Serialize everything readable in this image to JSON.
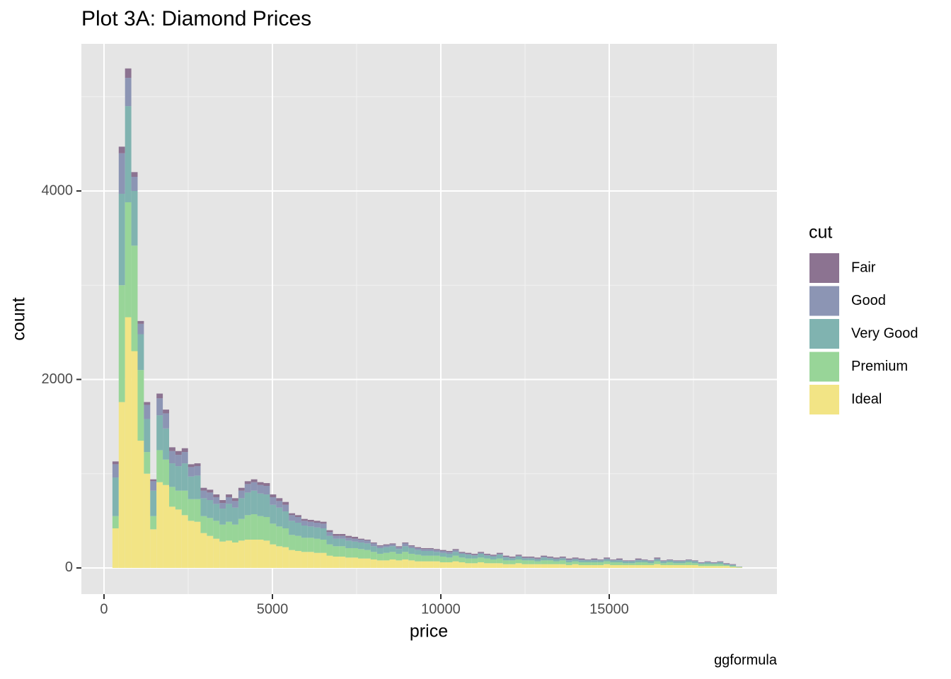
{
  "chart_data": {
    "type": "histogram",
    "title": "Plot 3A: Diamond Prices",
    "x_label": "price",
    "y_label": "count",
    "caption": "ggformula",
    "legend_title": "cut",
    "legend_position": "right",
    "grid": true,
    "xlim": [
      -672,
      19979
    ],
    "ylim": [
      -278,
      5561
    ],
    "xticks": [
      0,
      5000,
      10000,
      15000
    ],
    "yticks": [
      0,
      2000,
      4000
    ],
    "bins": [
      250,
      437,
      624,
      811,
      998,
      1185,
      1372,
      1559,
      1746,
      1933,
      2120,
      2307,
      2494,
      2681,
      2868,
      3055,
      3242,
      3429,
      3616,
      3803,
      3990,
      4177,
      4364,
      4551,
      4738,
      4925,
      5112,
      5299,
      5486,
      5673,
      5860,
      6047,
      6234,
      6421,
      6608,
      6795,
      6982,
      7169,
      7356,
      7543,
      7730,
      7917,
      8104,
      8291,
      8478,
      8665,
      8852,
      9039,
      9226,
      9413,
      9600,
      9787,
      9974,
      10161,
      10348,
      10535,
      10722,
      10909,
      11096,
      11283,
      11470,
      11657,
      11844,
      12031,
      12218,
      12405,
      12592,
      12779,
      12966,
      13153,
      13340,
      13527,
      13714,
      13901,
      14088,
      14275,
      14462,
      14649,
      14836,
      15023,
      15210,
      15397,
      15584,
      15771,
      15958,
      16145,
      16332,
      16519,
      16706,
      16893,
      17080,
      17267,
      17454,
      17641,
      17828,
      18015,
      18202,
      18389,
      18576,
      18763,
      18950
    ],
    "series": [
      {
        "name": "Fair",
        "color": "#8c7391",
        "values": [
          30,
          70,
          100,
          50,
          30,
          30,
          20,
          50,
          40,
          40,
          40,
          40,
          30,
          30,
          30,
          30,
          30,
          30,
          30,
          30,
          30,
          30,
          30,
          30,
          30,
          30,
          30,
          30,
          20,
          20,
          20,
          20,
          20,
          20,
          20,
          20,
          20,
          20,
          20,
          10,
          10,
          10,
          10,
          10,
          10,
          10,
          10,
          10,
          10,
          10,
          10,
          10,
          10,
          10,
          10,
          10,
          10,
          10,
          10,
          10,
          10,
          10,
          10,
          10,
          10,
          10,
          10,
          10,
          10,
          10,
          10,
          10,
          10,
          10,
          10,
          5,
          10,
          5,
          10,
          5,
          10,
          5,
          5,
          10,
          5,
          5,
          10,
          5,
          5,
          5,
          5,
          5,
          5,
          5,
          5,
          5,
          5,
          5,
          5,
          1
        ]
      },
      {
        "name": "Good",
        "color": "#8c95b4",
        "values": [
          140,
          430,
          300,
          150,
          110,
          150,
          100,
          180,
          160,
          130,
          120,
          120,
          100,
          100,
          80,
          80,
          70,
          60,
          70,
          70,
          80,
          90,
          90,
          90,
          90,
          80,
          70,
          70,
          60,
          60,
          50,
          50,
          50,
          50,
          40,
          30,
          30,
          30,
          30,
          30,
          30,
          30,
          20,
          20,
          20,
          20,
          30,
          20,
          20,
          20,
          20,
          20,
          20,
          20,
          20,
          10,
          10,
          10,
          10,
          10,
          10,
          10,
          10,
          10,
          10,
          10,
          10,
          10,
          10,
          10,
          10,
          10,
          10,
          10,
          10,
          5,
          10,
          5,
          10,
          5,
          10,
          5,
          5,
          10,
          5,
          5,
          10,
          5,
          5,
          5,
          5,
          5,
          5,
          5,
          5,
          5,
          5,
          5,
          5,
          1
        ]
      },
      {
        "name": "Very Good",
        "color": "#80b3b0",
        "values": [
          410,
          970,
          1020,
          580,
          380,
          350,
          270,
          370,
          330,
          250,
          260,
          290,
          240,
          250,
          190,
          190,
          180,
          170,
          190,
          180,
          220,
          240,
          250,
          240,
          240,
          200,
          200,
          180,
          150,
          140,
          130,
          120,
          120,
          120,
          90,
          80,
          80,
          80,
          70,
          70,
          70,
          60,
          60,
          60,
          60,
          50,
          60,
          60,
          50,
          50,
          50,
          40,
          40,
          40,
          40,
          40,
          40,
          30,
          40,
          30,
          30,
          40,
          30,
          20,
          30,
          20,
          20,
          20,
          30,
          20,
          20,
          20,
          20,
          20,
          20,
          20,
          20,
          20,
          20,
          20,
          20,
          20,
          20,
          20,
          20,
          20,
          20,
          20,
          20,
          20,
          20,
          20,
          20,
          10,
          20,
          10,
          20,
          10,
          10,
          3
        ]
      },
      {
        "name": "Premium",
        "color": "#98d598",
        "values": [
          130,
          1240,
          1220,
          1120,
          750,
          230,
          140,
          340,
          270,
          210,
          200,
          260,
          230,
          240,
          180,
          190,
          190,
          180,
          200,
          190,
          230,
          260,
          270,
          250,
          250,
          220,
          210,
          200,
          160,
          160,
          150,
          150,
          150,
          140,
          120,
          110,
          110,
          100,
          100,
          100,
          90,
          80,
          70,
          80,
          80,
          70,
          80,
          70,
          70,
          60,
          60,
          60,
          60,
          50,
          60,
          50,
          50,
          50,
          50,
          50,
          40,
          50,
          40,
          40,
          40,
          40,
          40,
          30,
          40,
          40,
          30,
          40,
          30,
          30,
          30,
          30,
          30,
          30,
          30,
          30,
          30,
          20,
          20,
          30,
          30,
          20,
          30,
          20,
          30,
          20,
          20,
          30,
          20,
          20,
          20,
          20,
          20,
          10,
          10,
          5
        ]
      },
      {
        "name": "Ideal",
        "color": "#f2e485",
        "values": [
          420,
          1760,
          2660,
          2300,
          1350,
          1000,
          410,
          910,
          880,
          650,
          620,
          560,
          500,
          490,
          370,
          340,
          310,
          280,
          290,
          270,
          290,
          300,
          300,
          300,
          290,
          250,
          230,
          220,
          190,
          180,
          170,
          170,
          160,
          160,
          130,
          120,
          120,
          110,
          110,
          100,
          100,
          90,
          80,
          80,
          90,
          80,
          90,
          80,
          70,
          70,
          70,
          70,
          60,
          60,
          70,
          60,
          50,
          50,
          60,
          50,
          50,
          50,
          40,
          40,
          50,
          40,
          40,
          40,
          40,
          40,
          40,
          40,
          30,
          40,
          30,
          30,
          30,
          30,
          40,
          30,
          30,
          30,
          30,
          30,
          30,
          30,
          40,
          30,
          30,
          30,
          30,
          30,
          30,
          20,
          20,
          20,
          20,
          20,
          10,
          5
        ]
      }
    ]
  }
}
